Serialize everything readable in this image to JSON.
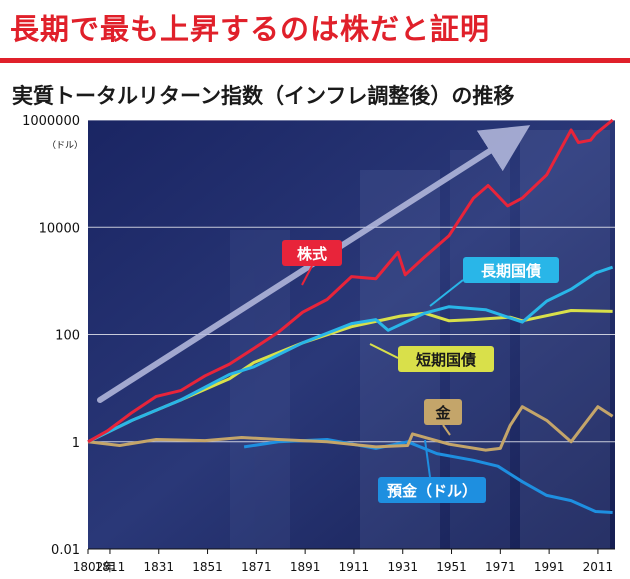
{
  "headline": "長期で最も上昇するのは株だと証明",
  "subtitle": "実質トータルリターン指数（インフレ調整後）の推移",
  "colors": {
    "headline": "#e0202a",
    "stocks": "#e8243a",
    "bonds": "#29b6e8",
    "bills": "#d9e04a",
    "gold": "#c4a56a",
    "dollar": "#1e8fe0",
    "background": "#1d2a66"
  },
  "chart_data": {
    "type": "line",
    "y_scale": "log",
    "ylim": [
      0.01,
      1000000
    ],
    "xlim": [
      1802,
      2018
    ],
    "y_ticks": [
      "1000000",
      "10000",
      "100",
      "1",
      "0.01"
    ],
    "y_unit": "（ドル）",
    "x_ticks": [
      "1802年",
      "1811",
      "1831",
      "1851",
      "1871",
      "1891",
      "1911",
      "1931",
      "1951",
      "1971",
      "1991",
      "2011"
    ],
    "grid": true,
    "series": [
      {
        "name": "株式",
        "x": [
          1802,
          1810,
          1820,
          1830,
          1840,
          1850,
          1860,
          1870,
          1880,
          1890,
          1900,
          1910,
          1920,
          1929,
          1932,
          1940,
          1950,
          1960,
          1966,
          1974,
          1980,
          1990,
          2000,
          2003,
          2008,
          2010,
          2017
        ],
        "y": [
          1,
          1.6,
          3.5,
          7,
          9,
          17,
          28,
          55,
          110,
          260,
          450,
          1200,
          1100,
          3400,
          1300,
          2800,
          7000,
          35000,
          60000,
          25000,
          35000,
          95000,
          650000,
          380000,
          420000,
          550000,
          1000000
        ]
      },
      {
        "name": "長期国債",
        "x": [
          1802,
          1820,
          1840,
          1860,
          1870,
          1890,
          1910,
          1920,
          1925,
          1940,
          1950,
          1965,
          1980,
          1990,
          2000,
          2010,
          2017
        ],
        "y": [
          1,
          2.5,
          6,
          18,
          25,
          70,
          160,
          190,
          120,
          250,
          330,
          290,
          170,
          420,
          700,
          1400,
          1800
        ]
      },
      {
        "name": "短期国債",
        "x": [
          1802,
          1820,
          1840,
          1860,
          1870,
          1890,
          1910,
          1930,
          1940,
          1950,
          1960,
          1975,
          1980,
          2000,
          2017
        ],
        "y": [
          1,
          2.5,
          6,
          15,
          30,
          70,
          140,
          220,
          250,
          180,
          190,
          210,
          180,
          280,
          270
        ]
      },
      {
        "name": "金",
        "x": [
          1802,
          1815,
          1830,
          1850,
          1865,
          1880,
          1900,
          1920,
          1933,
          1935,
          1950,
          1965,
          1971,
          1975,
          1980,
          1990,
          2000,
          2011,
          2017
        ],
        "y": [
          1,
          0.85,
          1.1,
          1.05,
          1.2,
          1.1,
          1.0,
          0.8,
          0.85,
          1.4,
          0.9,
          0.7,
          0.75,
          2.0,
          4.5,
          2.5,
          1.0,
          4.5,
          3.0
        ]
      },
      {
        "name": "預金（ドル）",
        "x": [
          1866,
          1880,
          1900,
          1920,
          1933,
          1945,
          1960,
          1970,
          1980,
          1990,
          2000,
          2010,
          2017
        ],
        "y": [
          0.8,
          1.0,
          1.1,
          0.75,
          1.0,
          0.6,
          0.45,
          0.35,
          0.18,
          0.1,
          0.08,
          0.05,
          0.048
        ]
      }
    ]
  }
}
